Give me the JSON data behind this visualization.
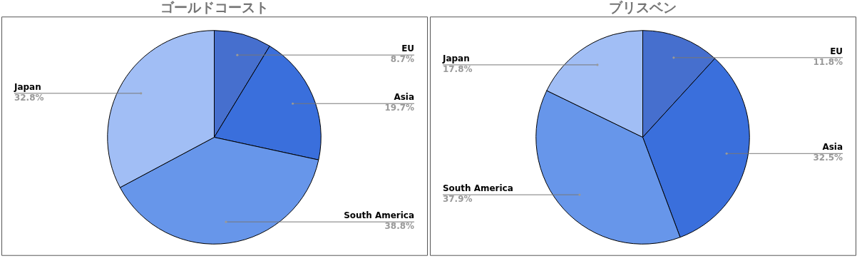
{
  "chart_data": [
    {
      "type": "pie",
      "title": "ゴールドコースト",
      "categories": [
        "EU",
        "Asia",
        "South America",
        "Japan"
      ],
      "values": [
        8.7,
        19.7,
        38.8,
        32.8
      ],
      "value_labels": [
        "8.7%",
        "19.7%",
        "38.8%",
        "32.8%"
      ],
      "colors": [
        "#466fce",
        "#3a6fdc",
        "#6796ea",
        "#a1bef5"
      ],
      "legend": false
    },
    {
      "type": "pie",
      "title": "ブリスベン",
      "categories": [
        "EU",
        "Asia",
        "South America",
        "Japan"
      ],
      "values": [
        11.8,
        32.5,
        37.9,
        17.8
      ],
      "value_labels": [
        "11.8%",
        "32.5%",
        "37.9%",
        "17.8%"
      ],
      "colors": [
        "#466fce",
        "#3a6fdc",
        "#6796ea",
        "#a1bef5"
      ],
      "legend": false
    }
  ]
}
